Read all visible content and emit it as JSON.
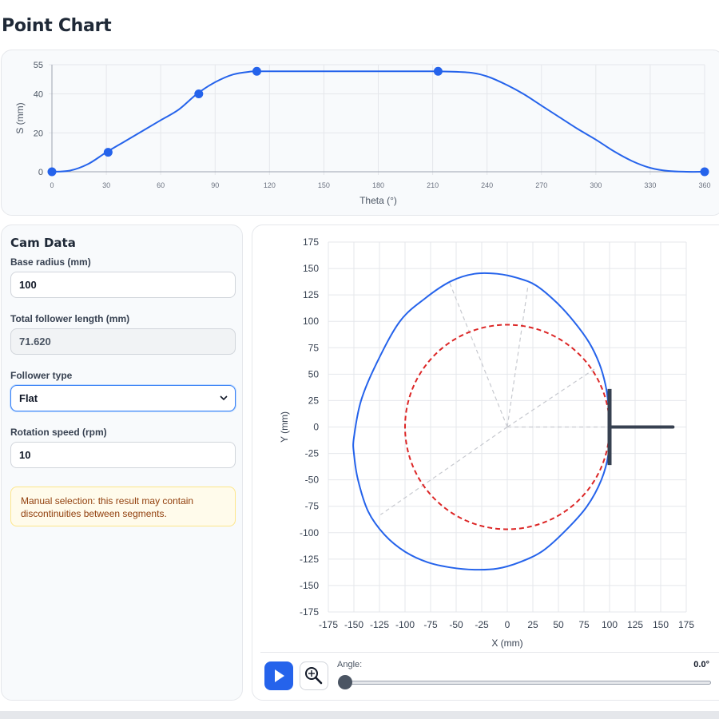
{
  "page": {
    "title": "Point Chart"
  },
  "motion_chart": {
    "chart_data": {
      "type": "line",
      "xlabel": "Theta (°)",
      "ylabel": "S (mm)",
      "xlim": [
        0,
        360
      ],
      "ylim": [
        0,
        55
      ],
      "x_ticks": [
        "0",
        "30",
        "60",
        "90",
        "120",
        "150",
        "180",
        "210",
        "240",
        "270",
        "300",
        "330",
        "360"
      ],
      "y_ticks": [
        "0",
        "20",
        "40",
        "55"
      ],
      "grid": true,
      "series": [
        {
          "x": [
            0,
            10,
            20,
            30,
            40,
            50,
            60,
            70,
            80,
            90,
            100,
            110,
            113,
            130,
            150,
            170,
            190,
            210,
            213,
            230,
            240,
            250,
            260,
            270,
            280,
            290,
            300,
            310,
            320,
            330,
            340,
            350,
            360
          ],
          "values": [
            0,
            0.6,
            4,
            10,
            15.5,
            21,
            26.5,
            32,
            40,
            46,
            50,
            51.5,
            51.6,
            51.6,
            51.6,
            51.6,
            51.6,
            51.6,
            51.6,
            51,
            49,
            45,
            40,
            34,
            28,
            22,
            16.5,
            10.5,
            5.5,
            2,
            0.4,
            0,
            0
          ]
        }
      ],
      "points": {
        "x": [
          0,
          31,
          81,
          113,
          213,
          360
        ],
        "y": [
          0,
          10,
          40,
          51.6,
          51.6,
          0
        ]
      },
      "color": "#2563eb"
    }
  },
  "cam_data": {
    "title": "Cam Data",
    "base_radius_label": "Base radius (mm)",
    "base_radius_value": "100",
    "follower_length_label": "Total follower length (mm)",
    "follower_length_value": "71.620",
    "follower_type_label": "Follower type",
    "follower_type_value": "Flat",
    "rotation_speed_label": "Rotation speed (rpm)",
    "rotation_speed_value": "10",
    "warning": "Manual selection: this result may contain discontinuities between segments."
  },
  "cam_plot": {
    "chart_data": {
      "type": "line",
      "xlabel": "X (mm)",
      "ylabel": "Y (mm)",
      "xlim": [
        -175,
        175
      ],
      "ylim": [
        -175,
        175
      ],
      "ticks": [
        "-175",
        "-150",
        "-125",
        "-100",
        "-75",
        "-50",
        "-25",
        "0",
        "25",
        "50",
        "75",
        "100",
        "125",
        "150",
        "175"
      ],
      "grid": true,
      "series": [
        {
          "style": "solid",
          "color": "#2563eb",
          "x": [
            100,
            99,
            96,
            90,
            80,
            65,
            48,
            28,
            10,
            -10,
            -32,
            -55,
            -80,
            -105,
            -128,
            -143,
            -150,
            -150,
            -146,
            -136,
            -120,
            -100,
            -78,
            -55,
            -32,
            -10,
            12,
            35,
            58,
            78,
            92,
            99,
            100
          ],
          "y": [
            0,
            20,
            40,
            60,
            80,
            100,
            118,
            134,
            141,
            145,
            145,
            138,
            122,
            100,
            60,
            25,
            -10,
            -25,
            -50,
            -80,
            -102,
            -118,
            -128,
            -133,
            -135,
            -134,
            -128,
            -117,
            -97,
            -75,
            -50,
            -25,
            0
          ]
        },
        {
          "style": "dashed",
          "color": "#dc2626",
          "radius": 100
        }
      ],
      "angle_lines": [
        [
          -57,
          138
        ],
        [
          20,
          132
        ],
        [
          87,
          56
        ],
        [
          100,
          0
        ],
        [
          -124,
          -83
        ]
      ],
      "follower": {
        "type": "flat",
        "x": 100,
        "face_half_length": 36,
        "stem_end": 162
      }
    }
  },
  "controls": {
    "angle_label": "Angle:",
    "angle_value": "0.0°",
    "angle_fraction": 0.0
  }
}
